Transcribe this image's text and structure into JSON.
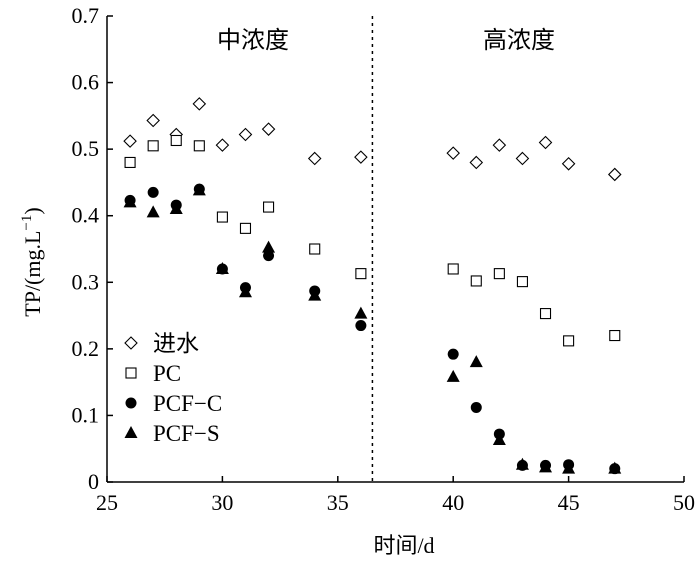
{
  "chart_data": {
    "type": "scatter",
    "xlabel": "时间/d",
    "ylabel_main": "TP/(mg.L",
    "ylabel_sup": "−1",
    "ylabel_close": ")",
    "xlim": [
      25,
      50
    ],
    "ylim": [
      0,
      0.7
    ],
    "x_ticks": [
      25,
      30,
      35,
      40,
      45,
      50
    ],
    "y_ticks": [
      0,
      0.1,
      0.2,
      0.3,
      0.4,
      0.5,
      0.6,
      0.7
    ],
    "x_tick_labels": [
      "25",
      "30",
      "35",
      "40",
      "45",
      "50"
    ],
    "y_tick_labels": [
      "0",
      "0.1",
      "0.2",
      "0.3",
      "0.4",
      "0.5",
      "0.6",
      "0.7"
    ],
    "divider_x": 36.5,
    "regions": [
      {
        "label": "中浓度"
      },
      {
        "label": "高浓度"
      }
    ],
    "legend_position": "bottom-left",
    "series": [
      {
        "name": "进水",
        "marker": "diamond-open",
        "points": [
          [
            26,
            0.512
          ],
          [
            27,
            0.543
          ],
          [
            28,
            0.522
          ],
          [
            29,
            0.568
          ],
          [
            30,
            0.506
          ],
          [
            31,
            0.522
          ],
          [
            32,
            0.53
          ],
          [
            34,
            0.486
          ],
          [
            36,
            0.488
          ],
          [
            40,
            0.494
          ],
          [
            41,
            0.48
          ],
          [
            42,
            0.506
          ],
          [
            43,
            0.486
          ],
          [
            44,
            0.51
          ],
          [
            45,
            0.478
          ],
          [
            47,
            0.462
          ]
        ]
      },
      {
        "name": "PC",
        "marker": "square-open",
        "points": [
          [
            26,
            0.48
          ],
          [
            27,
            0.505
          ],
          [
            28,
            0.513
          ],
          [
            29,
            0.505
          ],
          [
            30,
            0.398
          ],
          [
            31,
            0.381
          ],
          [
            32,
            0.413
          ],
          [
            34,
            0.35
          ],
          [
            36,
            0.313
          ],
          [
            40,
            0.32
          ],
          [
            41,
            0.302
          ],
          [
            42,
            0.313
          ],
          [
            43,
            0.301
          ],
          [
            44,
            0.253
          ],
          [
            45,
            0.212
          ],
          [
            47,
            0.22
          ]
        ]
      },
      {
        "name": "PCF−C",
        "marker": "circle-filled",
        "points": [
          [
            26,
            0.423
          ],
          [
            27,
            0.435
          ],
          [
            28,
            0.416
          ],
          [
            29,
            0.44
          ],
          [
            30,
            0.32
          ],
          [
            31,
            0.292
          ],
          [
            32,
            0.34
          ],
          [
            34,
            0.287
          ],
          [
            36,
            0.235
          ],
          [
            40,
            0.192
          ],
          [
            41,
            0.112
          ],
          [
            42,
            0.072
          ],
          [
            43,
            0.025
          ],
          [
            44,
            0.025
          ],
          [
            45,
            0.026
          ],
          [
            47,
            0.02
          ]
        ]
      },
      {
        "name": "PCF−S",
        "marker": "triangle-filled",
        "points": [
          [
            26,
            0.42
          ],
          [
            27,
            0.405
          ],
          [
            28,
            0.41
          ],
          [
            29,
            0.438
          ],
          [
            30,
            0.32
          ],
          [
            31,
            0.285
          ],
          [
            32,
            0.352
          ],
          [
            34,
            0.28
          ],
          [
            36,
            0.253
          ],
          [
            40,
            0.158
          ],
          [
            41,
            0.18
          ],
          [
            42,
            0.063
          ],
          [
            43,
            0.026
          ],
          [
            44,
            0.022
          ],
          [
            45,
            0.02
          ],
          [
            47,
            0.02
          ]
        ]
      }
    ]
  }
}
